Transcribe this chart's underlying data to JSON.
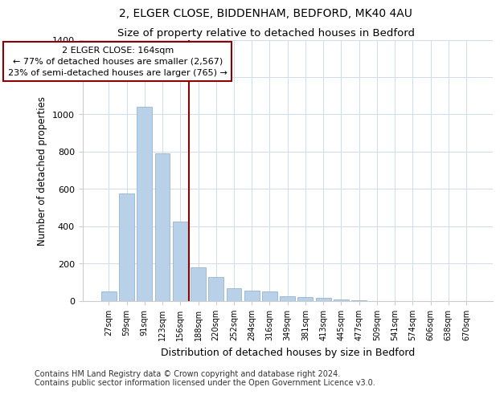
{
  "title": "2, ELGER CLOSE, BIDDENHAM, BEDFORD, MK40 4AU",
  "subtitle": "Size of property relative to detached houses in Bedford",
  "xlabel": "Distribution of detached houses by size in Bedford",
  "ylabel": "Number of detached properties",
  "bar_labels": [
    "27sqm",
    "59sqm",
    "91sqm",
    "123sqm",
    "156sqm",
    "188sqm",
    "220sqm",
    "252sqm",
    "284sqm",
    "316sqm",
    "349sqm",
    "381sqm",
    "413sqm",
    "445sqm",
    "477sqm",
    "509sqm",
    "541sqm",
    "574sqm",
    "606sqm",
    "638sqm",
    "670sqm"
  ],
  "bar_values": [
    50,
    575,
    1040,
    790,
    425,
    178,
    125,
    65,
    55,
    50,
    25,
    20,
    15,
    8,
    3,
    0,
    0,
    0,
    0,
    0,
    0
  ],
  "bar_color": "#b8d0e8",
  "bar_edge_color": "#88aacc",
  "ylim": [
    0,
    1400
  ],
  "yticks": [
    0,
    200,
    400,
    600,
    800,
    1000,
    1200,
    1400
  ],
  "annotation_line_color": "#8b0000",
  "annotation_box_text_line1": "2 ELGER CLOSE: 164sqm",
  "annotation_box_text_line2": "← 77% of detached houses are smaller (2,567)",
  "annotation_box_text_line3": "23% of semi-detached houses are larger (765) →",
  "footer_line1": "Contains HM Land Registry data © Crown copyright and database right 2024.",
  "footer_line2": "Contains public sector information licensed under the Open Government Licence v3.0.",
  "title_fontsize": 10,
  "subtitle_fontsize": 9.5,
  "xlabel_fontsize": 9,
  "ylabel_fontsize": 8.5,
  "footer_fontsize": 7,
  "background_color": "#ffffff",
  "grid_color": "#d0dce8"
}
